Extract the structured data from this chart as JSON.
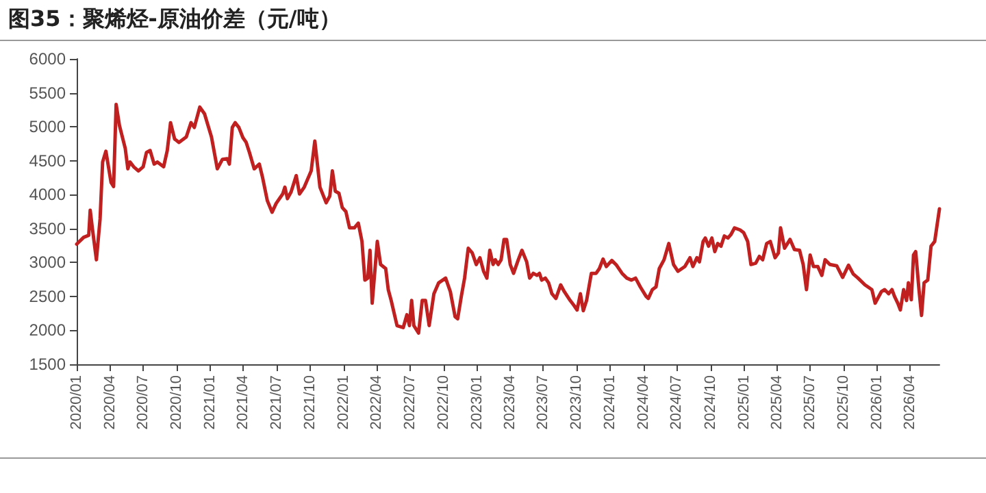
{
  "chart_data": {
    "type": "line",
    "title": "图35：聚烯烃-原油价差（元/吨）",
    "x": [
      "2020-01-01",
      "2020-01-20",
      "2020-02-03",
      "2020-02-07",
      "2020-02-13",
      "2020-02-24",
      "2020-03-05",
      "2020-03-12",
      "2020-03-21",
      "2020-04-04",
      "2020-04-11",
      "2020-04-18",
      "2020-04-27",
      "2020-05-13",
      "2020-05-20",
      "2020-05-26",
      "2020-06-05",
      "2020-06-18",
      "2020-07-01",
      "2020-07-10",
      "2020-07-20",
      "2020-07-31",
      "2020-08-09",
      "2020-08-26",
      "2020-09-05",
      "2020-09-14",
      "2020-09-25",
      "2020-10-07",
      "2020-10-27",
      "2020-11-09",
      "2020-11-18",
      "2020-12-03",
      "2020-12-16",
      "2021-01-04",
      "2021-01-20",
      "2021-02-03",
      "2021-02-16",
      "2021-02-22",
      "2021-03-02",
      "2021-03-10",
      "2021-03-20",
      "2021-03-31",
      "2021-04-09",
      "2021-04-18",
      "2021-05-01",
      "2021-05-15",
      "2021-05-24",
      "2021-06-06",
      "2021-06-19",
      "2021-06-30",
      "2021-07-18",
      "2021-07-24",
      "2021-07-31",
      "2021-08-10",
      "2021-08-24",
      "2021-09-02",
      "2021-09-15",
      "2021-10-04",
      "2021-10-14",
      "2021-10-28",
      "2021-11-14",
      "2021-11-24",
      "2021-12-01",
      "2021-12-09",
      "2021-12-19",
      "2021-12-28",
      "2022-01-07",
      "2022-01-17",
      "2022-01-30",
      "2022-02-10",
      "2022-02-20",
      "2022-02-28",
      "2022-03-08",
      "2022-03-14",
      "2022-03-20",
      "2022-04-03",
      "2022-04-12",
      "2022-04-26",
      "2022-05-03",
      "2022-05-11",
      "2022-05-27",
      "2022-06-13",
      "2022-06-23",
      "2022-06-30",
      "2022-07-06",
      "2022-07-12",
      "2022-07-25",
      "2022-08-04",
      "2022-08-13",
      "2022-08-23",
      "2022-09-05",
      "2022-09-18",
      "2022-10-07",
      "2022-10-20",
      "2022-11-02",
      "2022-11-09",
      "2022-11-19",
      "2022-11-28",
      "2022-12-08",
      "2022-12-19",
      "2022-12-30",
      "2023-01-09",
      "2023-01-19",
      "2023-01-28",
      "2023-02-05",
      "2023-02-14",
      "2023-02-20",
      "2023-02-28",
      "2023-03-08",
      "2023-03-16",
      "2023-03-23",
      "2023-04-02",
      "2023-04-11",
      "2023-04-24",
      "2023-05-04",
      "2023-05-17",
      "2023-05-25",
      "2023-06-04",
      "2023-06-14",
      "2023-06-21",
      "2023-06-27",
      "2023-07-07",
      "2023-07-16",
      "2023-07-25",
      "2023-08-05",
      "2023-08-18",
      "2023-08-28",
      "2023-09-13",
      "2023-09-23",
      "2023-10-02",
      "2023-10-11",
      "2023-10-19",
      "2023-10-28",
      "2023-11-10",
      "2023-11-23",
      "2023-12-02",
      "2023-12-12",
      "2023-12-21",
      "2024-01-05",
      "2024-01-18",
      "2024-02-02",
      "2024-02-15",
      "2024-02-28",
      "2024-03-10",
      "2024-03-23",
      "2024-04-08",
      "2024-04-14",
      "2024-04-25",
      "2024-05-05",
      "2024-05-14",
      "2024-05-27",
      "2024-06-09",
      "2024-06-22",
      "2024-07-04",
      "2024-07-23",
      "2024-08-06",
      "2024-08-14",
      "2024-08-25",
      "2024-09-01",
      "2024-09-11",
      "2024-09-17",
      "2024-09-26",
      "2024-10-05",
      "2024-10-13",
      "2024-10-21",
      "2024-10-30",
      "2024-11-08",
      "2024-11-18",
      "2024-11-26",
      "2024-12-06",
      "2024-12-21",
      "2024-12-31",
      "2025-01-11",
      "2025-01-20",
      "2025-02-02",
      "2025-02-12",
      "2025-02-21",
      "2025-03-04",
      "2025-03-14",
      "2025-03-27",
      "2025-04-05",
      "2025-04-11",
      "2025-04-22",
      "2025-05-07",
      "2025-05-19",
      "2025-06-02",
      "2025-06-12",
      "2025-06-21",
      "2025-07-01",
      "2025-07-10",
      "2025-07-22",
      "2025-08-02",
      "2025-08-11",
      "2025-08-24",
      "2025-09-12",
      "2025-09-28",
      "2025-10-14",
      "2025-10-27",
      "2025-11-09",
      "2025-11-28",
      "2025-12-17",
      "2025-12-26",
      "2026-01-12",
      "2026-01-21",
      "2026-02-01",
      "2026-02-10",
      "2026-02-17",
      "2026-02-26",
      "2026-03-05",
      "2026-03-14",
      "2026-03-22",
      "2026-03-27",
      "2026-04-04",
      "2026-04-10",
      "2026-04-16",
      "2026-04-25",
      "2026-05-02",
      "2026-05-09",
      "2026-05-19",
      "2026-05-28",
      "2026-06-07",
      "2026-06-20"
    ],
    "series": [
      {
        "color": "#c0201f",
        "values": [
          3270,
          3370,
          3400,
          3770,
          3500,
          3040,
          3640,
          4480,
          4640,
          4180,
          4120,
          5330,
          5020,
          4680,
          4380,
          4480,
          4410,
          4350,
          4410,
          4620,
          4650,
          4450,
          4480,
          4410,
          4650,
          5060,
          4820,
          4770,
          4850,
          5060,
          4990,
          5290,
          5190,
          4850,
          4380,
          4520,
          4530,
          4450,
          4990,
          5060,
          4990,
          4840,
          4770,
          4620,
          4380,
          4450,
          4250,
          3910,
          3740,
          3870,
          4010,
          4110,
          3940,
          4040,
          4280,
          4010,
          4110,
          4350,
          4790,
          4110,
          3880,
          3980,
          4350,
          4050,
          4020,
          3810,
          3750,
          3510,
          3510,
          3580,
          3310,
          2740,
          2770,
          3180,
          2400,
          3310,
          2970,
          2910,
          2600,
          2440,
          2070,
          2040,
          2230,
          2070,
          2440,
          2070,
          1960,
          2440,
          2440,
          2070,
          2540,
          2700,
          2770,
          2570,
          2200,
          2170,
          2500,
          2770,
          3210,
          3140,
          2970,
          3070,
          2870,
          2770,
          3180,
          2970,
          3040,
          2970,
          3040,
          3340,
          3340,
          2970,
          2840,
          3040,
          3180,
          3010,
          2770,
          2840,
          2810,
          2840,
          2740,
          2770,
          2700,
          2540,
          2470,
          2670,
          2570,
          2440,
          2370,
          2300,
          2540,
          2290,
          2440,
          2840,
          2840,
          2910,
          3050,
          2940,
          3030,
          2960,
          2840,
          2770,
          2740,
          2770,
          2640,
          2500,
          2470,
          2600,
          2640,
          2910,
          3040,
          3280,
          2970,
          2870,
          2940,
          3070,
          2940,
          3070,
          3010,
          3310,
          3360,
          3240,
          3360,
          3160,
          3280,
          3240,
          3390,
          3360,
          3410,
          3510,
          3480,
          3440,
          3310,
          2970,
          2990,
          3090,
          3040,
          3280,
          3310,
          3070,
          3140,
          3510,
          3210,
          3340,
          3190,
          3180,
          2970,
          2600,
          3110,
          2940,
          2940,
          2810,
          3040,
          2970,
          2950,
          2780,
          2960,
          2830,
          2770,
          2670,
          2600,
          2400,
          2570,
          2600,
          2540,
          2600,
          2500,
          2400,
          2300,
          2600,
          2440,
          2700,
          2450,
          3110,
          3160,
          2600,
          2220,
          2700,
          2740,
          3240,
          3310,
          3790
        ]
      }
    ],
    "xlim": [
      "2020-01-01",
      "2026-06-20"
    ],
    "xticks": [
      {
        "value": "2020-01",
        "label": "2020/01"
      },
      {
        "value": "2020-04",
        "label": "2020/04"
      },
      {
        "value": "2020-07",
        "label": "2020/07"
      },
      {
        "value": "2020-10",
        "label": "2020/10"
      },
      {
        "value": "2021-01",
        "label": "2021/01"
      },
      {
        "value": "2021-04",
        "label": "2021/04"
      },
      {
        "value": "2021-07",
        "label": "2021/07"
      },
      {
        "value": "2021-10",
        "label": "2021/10"
      },
      {
        "value": "2022-01",
        "label": "2022/01"
      },
      {
        "value": "2022-04",
        "label": "2022/04"
      },
      {
        "value": "2022-07",
        "label": "2022/07"
      },
      {
        "value": "2022-10",
        "label": "2022/10"
      },
      {
        "value": "2023-01",
        "label": "2023/01"
      },
      {
        "value": "2023-04",
        "label": "2023/04"
      },
      {
        "value": "2023-07",
        "label": "2023/07"
      },
      {
        "value": "2023-10",
        "label": "2023/10"
      },
      {
        "value": "2024-01",
        "label": "2024/01"
      },
      {
        "value": "2024-04",
        "label": "2024/04"
      },
      {
        "value": "2024-07",
        "label": "2024/07"
      },
      {
        "value": "2024-10",
        "label": "2024/10"
      },
      {
        "value": "2025-01",
        "label": "2025/01"
      },
      {
        "value": "2025-04",
        "label": "2025/04"
      },
      {
        "value": "2025-07",
        "label": "2025/07"
      },
      {
        "value": "2025-10",
        "label": "2025/10"
      },
      {
        "value": "2026-01",
        "label": "2026/01"
      },
      {
        "value": "2026-04",
        "label": "2026/04"
      }
    ],
    "ylim": [
      1500,
      6000
    ],
    "yticks": [
      1500,
      2000,
      2500,
      3000,
      3500,
      4000,
      4500,
      5000,
      5500,
      6000
    ],
    "marker": "none",
    "line_style": "solid"
  }
}
